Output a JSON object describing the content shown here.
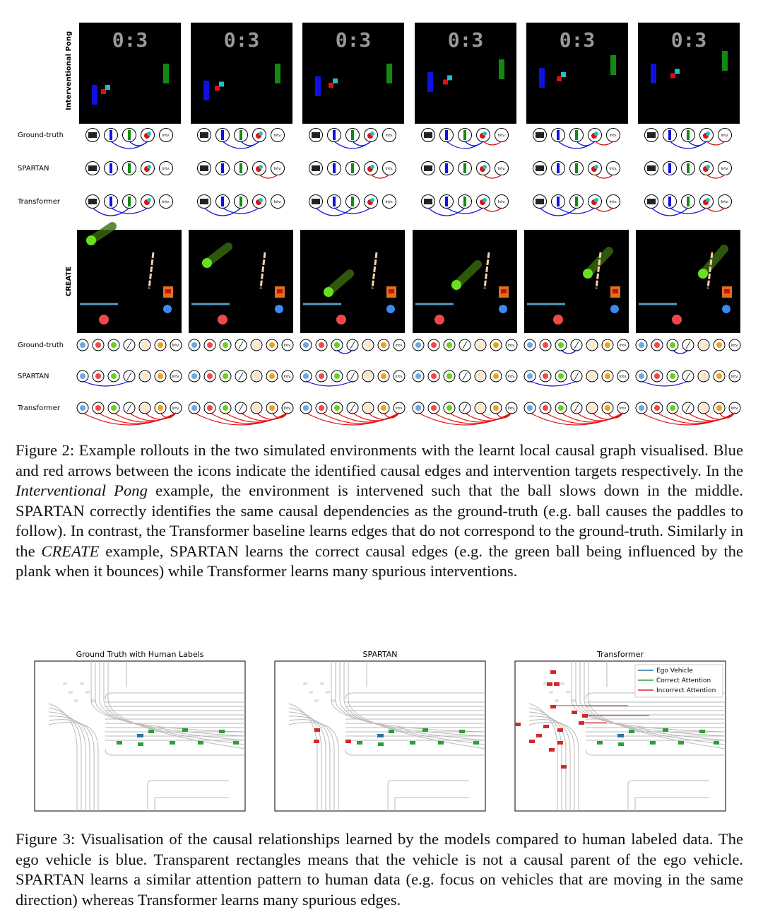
{
  "figure2": {
    "pong": {
      "label": "Interventional Pong",
      "score": "0:3",
      "rows": [
        "Ground-truth",
        "SPARTAN",
        "Transformer"
      ],
      "node_label": "Intv."
    },
    "create": {
      "label": "CREATE",
      "rows": [
        "Ground-truth",
        "SPARTAN",
        "Transformer"
      ],
      "node_label": "Intv."
    },
    "caption": [
      "Figure 2: Example rollouts in the two simulated environments with the learnt local causal graph visualised. Blue and red arrows between the icons indicate the identified causal edges and intervention targets respectively. In the ",
      "Interventional Pong",
      " example, the environment is intervened such that the ball slows down in the middle. SPARTAN correctly identifies the same causal dependencies as the ground-truth (e.g. ball causes the paddles to follow). In contrast, the Transformer baseline learns edges that do not correspond to the ground-truth. Similarly in the ",
      "CREATE",
      " example, SPARTAN learns the correct causal edges (e.g. the green ball being influenced by the plank when it bounces) while Transformer learns many spurious interventions."
    ]
  },
  "figure3": {
    "panels": [
      "Ground Truth with Human Labels",
      "SPARTAN",
      "Transformer"
    ],
    "legend": [
      {
        "name": "Ego Vehicle",
        "color": "#1f77b4"
      },
      {
        "name": "Correct Attention",
        "color": "#2ca02c"
      },
      {
        "name": "Incorrect Attention",
        "color": "#d62728"
      }
    ],
    "caption": "Figure 3: Visualisation of the causal relationships learned by the models compared to human labeled data. The ego vehicle is blue. Transparent rectangles means that the vehicle is not a causal parent of the ego vehicle. SPARTAN learns a similar attention pattern to human data (e.g. focus on vehicles that are moving in the same direction) whereas Transformer learns many spurious edges."
  }
}
